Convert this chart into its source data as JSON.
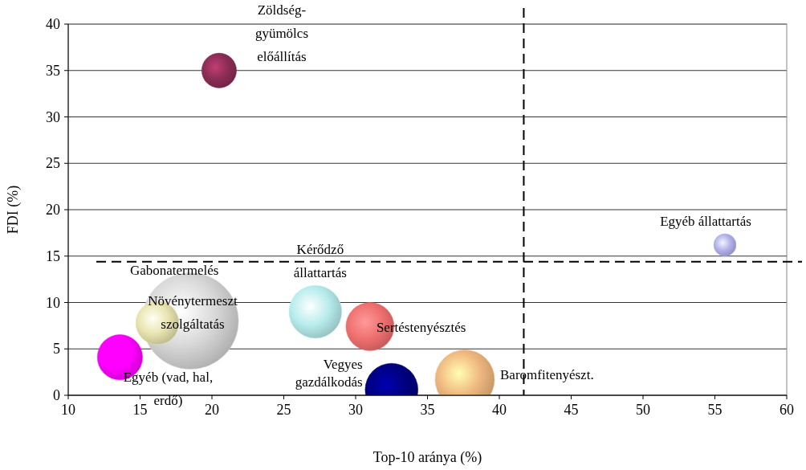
{
  "chart_data": {
    "type": "bubble",
    "xlabel": "Top-10 aránya (%)",
    "ylabel": "FDI (%)",
    "xlim": [
      10,
      60
    ],
    "xticks": [
      10,
      15,
      20,
      25,
      30,
      35,
      40,
      45,
      50,
      55,
      60
    ],
    "ylim": [
      0,
      40
    ],
    "yticks": [
      0,
      5,
      10,
      15,
      20,
      25,
      30,
      35,
      40
    ],
    "grid": "y",
    "series": [
      {
        "name": "Zöldség-\ngyümölcs\nelőállítás",
        "color": "#8b2d55",
        "x": [
          20.5
        ],
        "values": [
          35
        ],
        "sizes": [
          0.13
        ]
      },
      {
        "name": "Egyéb állattartás",
        "color": "#b0b0e8",
        "x": [
          55.7
        ],
        "values": [
          16.2
        ],
        "sizes": [
          0.054
        ]
      },
      {
        "name": "Gabonatermelés",
        "color": "#d8d8d8",
        "x": [
          18.5
        ],
        "values": [
          8
        ],
        "sizes": [
          1
        ]
      },
      {
        "name": "Növénytermeszt\nszolgáltatás",
        "color": "#e8e4b0",
        "x": [
          16.2
        ],
        "values": [
          7.8
        ],
        "sizes": [
          0.2
        ]
      },
      {
        "name": "Egyéb (vad, hal,\nerdő)",
        "color": "#ff00ff",
        "x": [
          13.6
        ],
        "values": [
          4.1
        ],
        "sizes": [
          0.22
        ]
      },
      {
        "name": "Kérődző\nállattartás",
        "color": "#b8ecec",
        "x": [
          27.2
        ],
        "values": [
          9
        ],
        "sizes": [
          0.3
        ]
      },
      {
        "name": "Sertéstenyésztés",
        "color": "#f07070",
        "x": [
          31
        ],
        "values": [
          7.4
        ],
        "sizes": [
          0.25
        ]
      },
      {
        "name": "Vegyes\ngazdálkodás",
        "color": "#000080",
        "x": [
          32.5
        ],
        "values": [
          0.6
        ],
        "sizes": [
          0.3
        ]
      },
      {
        "name": "Baromfitenyészt.",
        "color": "#f0b880",
        "x": [
          37.6
        ],
        "values": [
          1.7
        ],
        "sizes": [
          0.38
        ]
      }
    ],
    "ref_lines": [
      {
        "axis": "x",
        "value": 41.7,
        "line_style": "dashed"
      },
      {
        "axis": "y",
        "value": 14.4,
        "line_style": "dashed"
      }
    ]
  }
}
